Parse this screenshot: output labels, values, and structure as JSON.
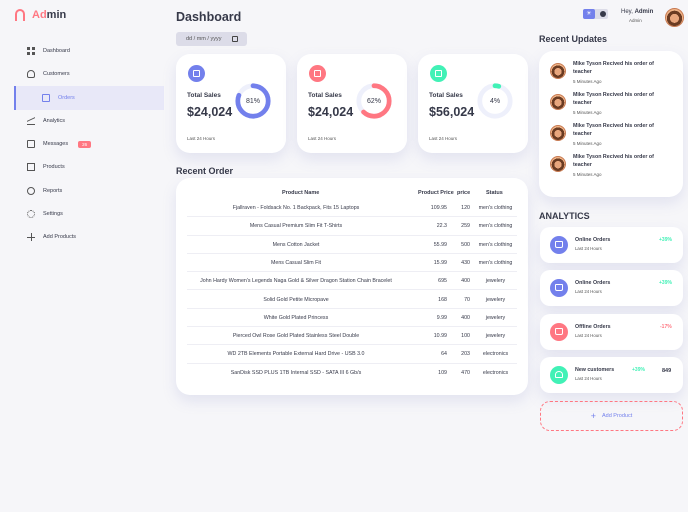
{
  "brand": {
    "name_prefix": "Ad",
    "name_suffix": "min"
  },
  "sidebar": {
    "items": [
      {
        "label": "Dashboard",
        "icon": "grid-icon"
      },
      {
        "label": "Customers",
        "icon": "person-icon"
      },
      {
        "label": "Orders",
        "icon": "receipt-icon"
      },
      {
        "label": "Analytics",
        "icon": "insights-icon"
      },
      {
        "label": "Messages",
        "icon": "mail-icon",
        "badge": "26"
      },
      {
        "label": "Products",
        "icon": "inventory-icon"
      },
      {
        "label": "Reports",
        "icon": "report-icon"
      },
      {
        "label": "Settings",
        "icon": "gear-icon"
      },
      {
        "label": "Add Products",
        "icon": "plus-icon"
      }
    ]
  },
  "main": {
    "title": "Dashboard",
    "date_placeholder": "dd / mm / yyyy",
    "cards": [
      {
        "label": "Total Sales",
        "value": "$24,024",
        "percent": "81%",
        "fraction": 0.81,
        "foot": "Last 24 Hours",
        "color": "#7380ec"
      },
      {
        "label": "Total Sales",
        "value": "$24,024",
        "percent": "62%",
        "fraction": 0.62,
        "foot": "Last 24 Hours",
        "color": "#ff7782"
      },
      {
        "label": "Total Sales",
        "value": "$56,024",
        "percent": "4%",
        "fraction": 0.04,
        "foot": "Last 24 Hours",
        "color": "#41f1b6"
      }
    ],
    "recent_order_title": "Recent Order",
    "table_headers": {
      "name": "Product Name",
      "price": "Product Price",
      "qty": "price",
      "status": "Status"
    },
    "orders": [
      {
        "name": "Fjallraven - Foldsack No. 1 Backpack, Fits 15 Laptops",
        "price": "109.95",
        "qty": "120",
        "status": "men's clothing"
      },
      {
        "name": "Mens Casual Premium Slim Fit T-Shirts",
        "price": "22.3",
        "qty": "259",
        "status": "men's clothing"
      },
      {
        "name": "Mens Cotton Jacket",
        "price": "55.99",
        "qty": "500",
        "status": "men's clothing"
      },
      {
        "name": "Mens Casual Slim Fit",
        "price": "15.99",
        "qty": "430",
        "status": "men's clothing"
      },
      {
        "name": "John Hardy Women's Legends Naga Gold & Silver Dragon Station Chain Bracelet",
        "price": "695",
        "qty": "400",
        "status": "jewelery"
      },
      {
        "name": "Solid Gold Petite Micropave",
        "price": "168",
        "qty": "70",
        "status": "jewelery"
      },
      {
        "name": "White Gold Plated Princess",
        "price": "9.99",
        "qty": "400",
        "status": "jewelery"
      },
      {
        "name": "Pierced Owl Rose Gold Plated Stainless Steel Double",
        "price": "10.99",
        "qty": "100",
        "status": "jewelery"
      },
      {
        "name": "WD 2TB Elements Portable External Hard Drive - USB 3.0",
        "price": "64",
        "qty": "203",
        "status": "electronics"
      },
      {
        "name": "SanDisk SSD PLUS 1TB Internal SSD - SATA III 6 Gb/s",
        "price": "109",
        "qty": "470",
        "status": "electronics"
      }
    ]
  },
  "header": {
    "greeting": "Hey, ",
    "user": "Admin",
    "role": "Admin"
  },
  "updates": {
    "title": "Recent Updates",
    "items": [
      {
        "name": "Mike Tyson",
        "text": " Recived his order of teacher",
        "time": "5 Minutes Ago"
      },
      {
        "name": "Mike Tyson",
        "text": " Recived his order of teacher",
        "time": "5 Minutes Ago"
      },
      {
        "name": "Mike Tyson",
        "text": " Recived his order of teacher",
        "time": "5 Minutes Ago"
      },
      {
        "name": "Mike Tyson",
        "text": " Recived his order of teacher",
        "time": "5 Minutes Ago"
      }
    ]
  },
  "analytics": {
    "title": "ANALYTICS",
    "items": [
      {
        "title": "Online Orders",
        "sub": "Last 24 Hours",
        "pct": "+39%",
        "color": "#7380ec",
        "pct_color": "#41f1b6"
      },
      {
        "title": "Online Orders",
        "sub": "Last 24 Hours",
        "pct": "+39%",
        "color": "#7380ec",
        "pct_color": "#41f1b6"
      },
      {
        "title": "Offline Orders",
        "sub": "Last 24 Hours",
        "pct": "-17%",
        "color": "#ff7782",
        "pct_color": "#ff7782"
      },
      {
        "title": "New customers",
        "sub": "Last 24 Hours",
        "pct": "+39%",
        "value": "849",
        "color": "#41f1b6",
        "pct_color": "#41f1b6"
      }
    ],
    "add_product": "Add Product"
  }
}
